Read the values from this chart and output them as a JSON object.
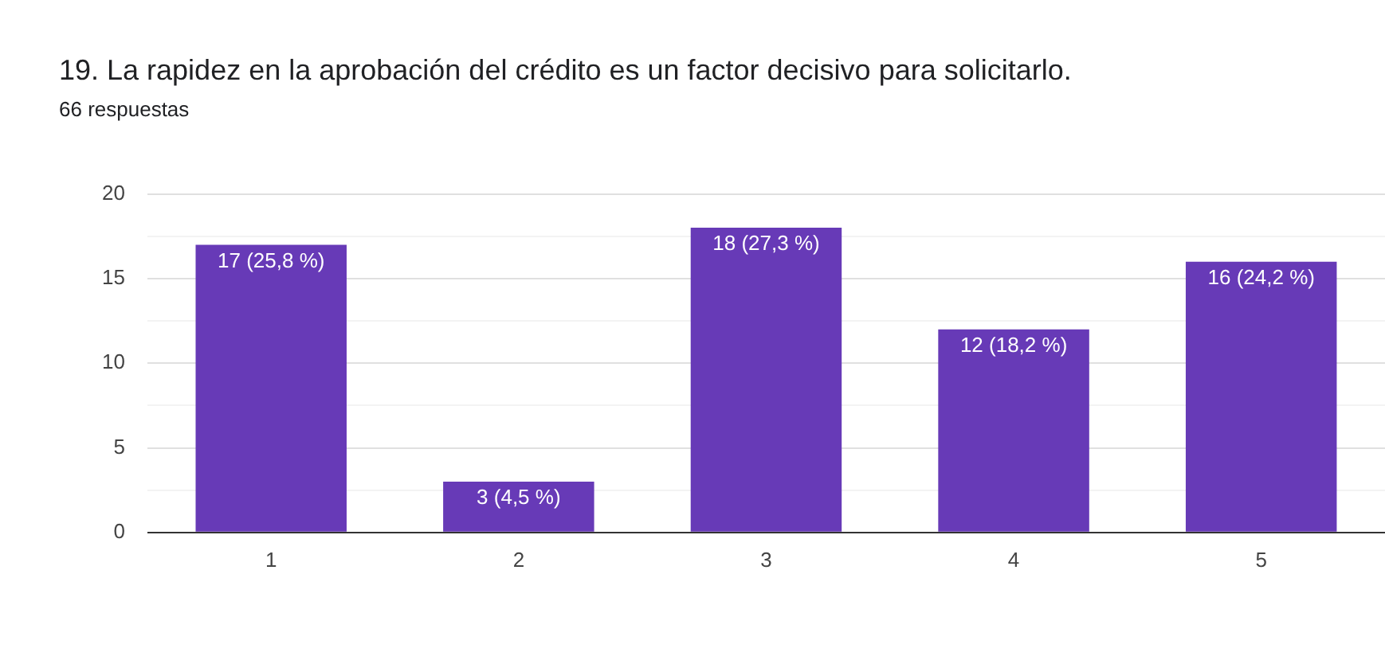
{
  "chart_data": {
    "type": "bar",
    "title": "19.  La rapidez en la aprobación del crédito es un factor decisivo para solicitarlo.",
    "subtitle": "66 respuestas",
    "categories": [
      "1",
      "2",
      "3",
      "4",
      "5"
    ],
    "values": [
      17,
      3,
      18,
      12,
      16
    ],
    "value_labels": [
      "17 (25,8 %)",
      "3 (4,5 %)",
      "18 (27,3 %)",
      "12 (18,2 %)",
      "16 (24,2 %)"
    ],
    "color": "#673ab7",
    "ylim": [
      0,
      20
    ],
    "yticks": [
      0,
      {
        "value": 2.5,
        "label": null
      },
      5,
      {
        "value": 7.5,
        "label": null
      },
      10,
      {
        "value": 12.5,
        "label": null
      },
      15,
      {
        "value": 17.5,
        "label": null
      },
      20
    ],
    "grid": "y"
  }
}
